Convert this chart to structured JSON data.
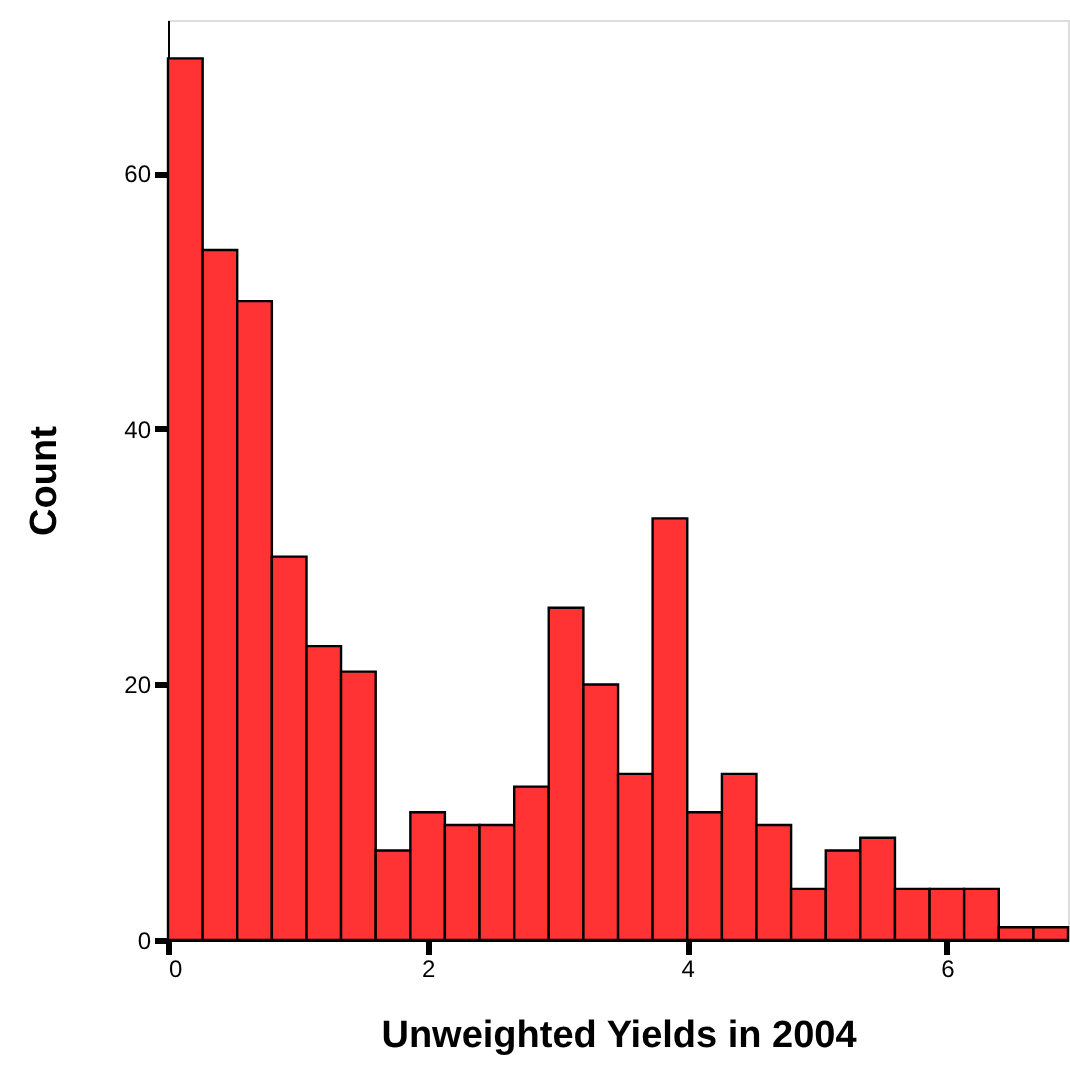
{
  "chart_data": {
    "type": "histogram",
    "xlabel": "Unweighted Yields in 2004",
    "ylabel": "Count",
    "bins": [
      0,
      0.267,
      0.533,
      0.8,
      1.067,
      1.333,
      1.6,
      1.867,
      2.133,
      2.4,
      2.667,
      2.933,
      3.2,
      3.467,
      3.733,
      4.0,
      4.267,
      4.533,
      4.8,
      5.067,
      5.333,
      5.6,
      5.867,
      6.133,
      6.4,
      6.667,
      6.933
    ],
    "values": [
      69,
      54,
      50,
      30,
      23,
      21,
      7,
      10,
      9,
      9,
      12,
      26,
      20,
      13,
      33,
      10,
      13,
      9,
      4,
      7,
      8,
      4,
      4,
      4,
      1,
      1
    ],
    "color": "#ff3333",
    "xlim": [
      0,
      6.933
    ],
    "ylim": [
      0,
      72
    ],
    "xticks": [
      0,
      2,
      4,
      6
    ],
    "yticks": [
      0,
      20,
      40,
      60
    ],
    "grid": false
  }
}
